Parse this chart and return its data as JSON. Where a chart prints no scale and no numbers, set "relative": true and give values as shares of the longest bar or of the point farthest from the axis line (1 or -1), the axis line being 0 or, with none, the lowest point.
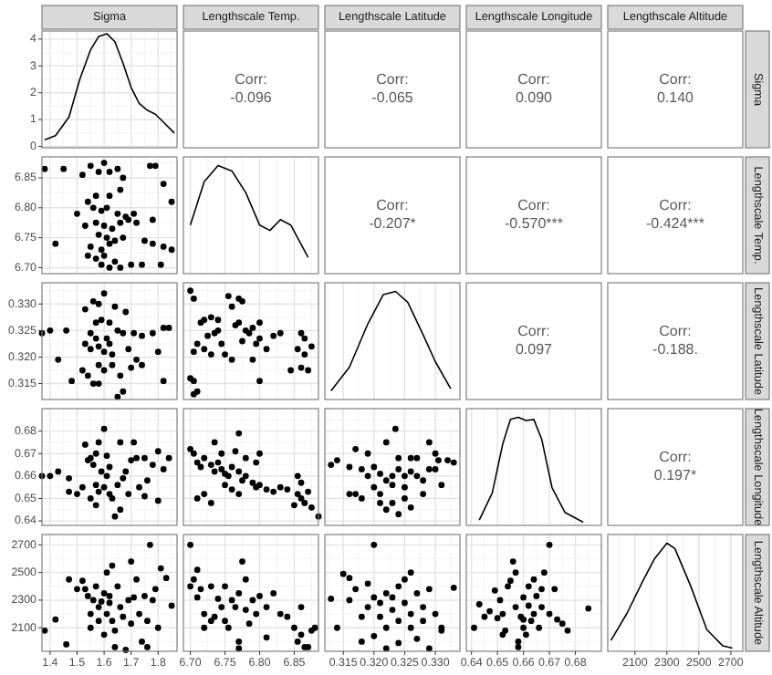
{
  "chart_data": [
    {
      "type": "line",
      "title": "Sigma",
      "color": "#000000",
      "grid": true,
      "tick_labels": "y",
      "xlim": [
        1.37,
        1.87
      ],
      "xticks": [
        1.4,
        1.5,
        1.6,
        1.7,
        1.8
      ],
      "ylim": [
        -0.05,
        4.3
      ],
      "yticks": [
        0,
        1,
        2,
        3,
        4
      ],
      "x": [
        1.38,
        1.42,
        1.47,
        1.51,
        1.55,
        1.58,
        1.61,
        1.64,
        1.67,
        1.7,
        1.73,
        1.76,
        1.79,
        1.82,
        1.86
      ],
      "values": [
        0.25,
        0.4,
        1.1,
        2.5,
        3.6,
        4.1,
        4.2,
        3.9,
        3.1,
        2.2,
        1.6,
        1.35,
        1.2,
        0.9,
        0.5
      ]
    },
    {
      "type": "other",
      "title": "Lengthscale Temp.",
      "annotations": [
        "Corr:",
        "-0.096"
      ]
    },
    {
      "type": "other",
      "title": "Lengthscale Latitude",
      "annotations": [
        "Corr:",
        "-0.065"
      ]
    },
    {
      "type": "other",
      "title": "Lengthscale Longitude",
      "annotations": [
        "Corr:",
        "0.090"
      ]
    },
    {
      "type": "other",
      "title": "Lengthscale Altitude",
      "y2label": "Sigma",
      "annotations": [
        "Corr:",
        "0.140"
      ]
    },
    {
      "type": "scatter",
      "color": "#000000",
      "marker": "circle",
      "grid": true,
      "tick_labels": "y",
      "xlim": [
        1.37,
        1.87
      ],
      "xticks": [
        1.4,
        1.5,
        1.6,
        1.7,
        1.8
      ],
      "ylim": [
        6.69,
        6.885
      ],
      "yticks": [
        {
          "value": 6.7,
          "label": "6.70"
        },
        {
          "value": 6.75,
          "label": "6.75"
        },
        {
          "value": 6.8,
          "label": "6.80"
        },
        {
          "value": 6.85,
          "label": "6.85"
        }
      ],
      "x": [
        1.38,
        1.45,
        1.52,
        1.55,
        1.58,
        1.6,
        1.62,
        1.65,
        1.67,
        1.77,
        1.79,
        1.82,
        1.54,
        1.57,
        1.62,
        1.66,
        1.56,
        1.59,
        1.61,
        1.65,
        1.68,
        1.71,
        1.78,
        1.85,
        1.5,
        1.53,
        1.57,
        1.6,
        1.63,
        1.66,
        1.69,
        1.72,
        1.58,
        1.61,
        1.64,
        1.67,
        1.42,
        1.55,
        1.59,
        1.62,
        1.75,
        1.78,
        1.82,
        1.85,
        1.54,
        1.57,
        1.6,
        1.64,
        1.7,
        1.62,
        1.66,
        1.74,
        1.81,
        1.59
      ],
      "values": [
        6.865,
        6.865,
        6.855,
        6.87,
        6.86,
        6.875,
        6.86,
        6.865,
        6.85,
        6.87,
        6.87,
        6.84,
        6.81,
        6.82,
        6.82,
        6.83,
        6.8,
        6.795,
        6.8,
        6.79,
        6.785,
        6.79,
        6.78,
        6.81,
        6.79,
        6.77,
        6.775,
        6.77,
        6.765,
        6.775,
        6.78,
        6.775,
        6.755,
        6.75,
        6.745,
        6.75,
        6.74,
        6.735,
        6.73,
        6.74,
        6.745,
        6.74,
        6.735,
        6.73,
        6.72,
        6.715,
        6.72,
        6.71,
        6.705,
        6.7,
        6.7,
        6.705,
        6.705,
        6.705
      ]
    },
    {
      "type": "line",
      "color": "#000000",
      "relative": true,
      "grid": true,
      "tick_labels": false,
      "xlim": [
        6.69,
        6.885
      ],
      "xticks": [
        6.7,
        6.75,
        6.8,
        6.85
      ],
      "x": [
        6.7,
        6.72,
        6.74,
        6.76,
        6.78,
        6.8,
        6.815,
        6.83,
        6.845,
        6.87
      ],
      "values": [
        0.45,
        0.85,
        1,
        0.95,
        0.75,
        0.45,
        0.4,
        0.5,
        0.45,
        0.15
      ]
    },
    {
      "type": "other",
      "annotations": [
        "Corr:",
        "-0.207*"
      ]
    },
    {
      "type": "other",
      "annotations": [
        "Corr:",
        "-0.570***"
      ]
    },
    {
      "type": "other",
      "y2label": "Lengthscale Temp.",
      "annotations": [
        "Corr:",
        "-0.424***"
      ]
    },
    {
      "type": "scatter",
      "color": "#000000",
      "marker": "circle",
      "grid": true,
      "tick_labels": "y",
      "xlim": [
        1.37,
        1.87
      ],
      "xticks": [
        1.4,
        1.5,
        1.6,
        1.7,
        1.8
      ],
      "ylim": [
        0.312,
        0.334
      ],
      "yticks": [
        0.315,
        {
          "value": 0.32,
          "label": "0.320"
        },
        0.325,
        {
          "value": 0.33,
          "label": "0.330"
        }
      ],
      "x": [
        1.37,
        1.4,
        1.46,
        1.43,
        1.48,
        1.52,
        1.54,
        1.55,
        1.53,
        1.56,
        1.58,
        1.6,
        1.62,
        1.59,
        1.61,
        1.57,
        1.55,
        1.58,
        1.6,
        1.63,
        1.65,
        1.67,
        1.58,
        1.6,
        1.56,
        1.58,
        1.63,
        1.66,
        1.65,
        1.67,
        1.7,
        1.72,
        1.74,
        1.71,
        1.74,
        1.78,
        1.82,
        1.84,
        1.8,
        1.82,
        1.68,
        1.64,
        1.53,
        1.57,
        1.62,
        1.69
      ],
      "values": [
        0.3245,
        0.325,
        0.325,
        0.3195,
        0.3155,
        0.3175,
        0.3165,
        0.3215,
        0.329,
        0.3305,
        0.33,
        0.332,
        0.3265,
        0.327,
        0.3235,
        0.3235,
        0.3245,
        0.322,
        0.321,
        0.3205,
        0.325,
        0.3245,
        0.3185,
        0.3175,
        0.315,
        0.315,
        0.3185,
        0.3165,
        0.3125,
        0.3135,
        0.318,
        0.3195,
        0.3185,
        0.3245,
        0.324,
        0.3245,
        0.3255,
        0.3255,
        0.321,
        0.3155,
        0.3285,
        0.3295,
        0.3225,
        0.3265,
        0.3225,
        0.3215
      ]
    },
    {
      "type": "scatter",
      "color": "#000000",
      "marker": "circle",
      "grid": true,
      "tick_labels": false,
      "xlim": [
        6.69,
        6.885
      ],
      "xticks": [
        6.7,
        6.75,
        6.8,
        6.85
      ],
      "ylim": [
        0.312,
        0.334
      ],
      "yticks": [
        0.315,
        0.32,
        0.325,
        0.33
      ],
      "x": [
        6.7,
        6.705,
        6.7,
        6.705,
        6.71,
        6.705,
        6.705,
        6.71,
        6.715,
        6.72,
        6.73,
        6.74,
        6.725,
        6.735,
        6.74,
        6.72,
        6.73,
        6.745,
        6.75,
        6.76,
        6.755,
        6.76,
        6.765,
        6.77,
        6.78,
        6.775,
        6.785,
        6.79,
        6.795,
        6.8,
        6.81,
        6.79,
        6.77,
        6.775,
        6.8,
        6.82,
        6.83,
        6.8,
        6.845,
        6.86,
        6.855,
        6.865,
        6.86,
        6.87,
        6.875,
        6.865
      ],
      "values": [
        0.3325,
        0.331,
        0.316,
        0.3155,
        0.3135,
        0.313,
        0.321,
        0.3225,
        0.3265,
        0.327,
        0.3275,
        0.327,
        0.324,
        0.3245,
        0.325,
        0.3215,
        0.3205,
        0.3225,
        0.3205,
        0.3195,
        0.3315,
        0.3295,
        0.326,
        0.3265,
        0.325,
        0.323,
        0.3245,
        0.3255,
        0.3225,
        0.3235,
        0.3215,
        0.3195,
        0.331,
        0.3305,
        0.3265,
        0.324,
        0.3245,
        0.3155,
        0.3175,
        0.3245,
        0.3215,
        0.3205,
        0.318,
        0.3175,
        0.322,
        0.3235
      ]
    },
    {
      "type": "line",
      "color": "#000000",
      "relative": true,
      "grid": true,
      "tick_labels": false,
      "xlim": [
        0.312,
        0.334
      ],
      "xticks": [
        0.315,
        0.32,
        0.325,
        0.33
      ],
      "x": [
        0.313,
        0.316,
        0.319,
        0.3215,
        0.3235,
        0.3255,
        0.328,
        0.33,
        0.3325
      ],
      "values": [
        0.08,
        0.3,
        0.7,
        0.97,
        1,
        0.9,
        0.6,
        0.35,
        0.1
      ]
    },
    {
      "type": "other",
      "annotations": [
        "Corr:",
        "0.097"
      ]
    },
    {
      "type": "other",
      "y2label": "Lengthscale Latitude",
      "annotations": [
        "Corr:",
        "-0.188."
      ]
    },
    {
      "type": "scatter",
      "color": "#000000",
      "marker": "circle",
      "grid": true,
      "tick_labels": "y",
      "xlim": [
        1.37,
        1.87
      ],
      "xticks": [
        1.4,
        1.5,
        1.6,
        1.7,
        1.8
      ],
      "ylim": [
        0.638,
        0.69
      ],
      "yticks": [
        0.64,
        0.65,
        0.66,
        0.67,
        0.68
      ],
      "x": [
        1.37,
        1.4,
        1.43,
        1.47,
        1.47,
        1.5,
        1.52,
        1.54,
        1.55,
        1.56,
        1.57,
        1.58,
        1.6,
        1.59,
        1.61,
        1.62,
        1.57,
        1.58,
        1.55,
        1.57,
        1.6,
        1.62,
        1.63,
        1.64,
        1.66,
        1.65,
        1.67,
        1.68,
        1.7,
        1.71,
        1.72,
        1.73,
        1.75,
        1.76,
        1.78,
        1.8,
        1.82,
        1.84,
        1.8,
        1.75,
        1.66,
        1.53,
        1.61,
        1.69
      ],
      "values": [
        0.66,
        0.66,
        0.662,
        0.659,
        0.653,
        0.652,
        0.655,
        0.667,
        0.668,
        0.665,
        0.67,
        0.675,
        0.681,
        0.662,
        0.66,
        0.664,
        0.656,
        0.653,
        0.65,
        0.647,
        0.655,
        0.652,
        0.65,
        0.642,
        0.645,
        0.656,
        0.659,
        0.662,
        0.667,
        0.675,
        0.668,
        0.655,
        0.651,
        0.658,
        0.665,
        0.671,
        0.663,
        0.668,
        0.649,
        0.668,
        0.675,
        0.674,
        0.669,
        0.652
      ]
    },
    {
      "type": "scatter",
      "color": "#000000",
      "marker": "circle",
      "grid": true,
      "tick_labels": false,
      "xlim": [
        6.69,
        6.885
      ],
      "xticks": [
        6.7,
        6.75,
        6.8,
        6.85
      ],
      "ylim": [
        0.638,
        0.69
      ],
      "yticks": [
        0.64,
        0.65,
        0.66,
        0.67,
        0.68
      ],
      "x": [
        6.7,
        6.705,
        6.71,
        6.715,
        6.72,
        6.73,
        6.735,
        6.74,
        6.745,
        6.75,
        6.755,
        6.76,
        6.77,
        6.775,
        6.78,
        6.79,
        6.795,
        6.8,
        6.81,
        6.82,
        6.83,
        6.84,
        6.71,
        6.72,
        6.73,
        6.76,
        6.77,
        6.77,
        6.735,
        6.745,
        6.765,
        6.78,
        6.795,
        6.75,
        6.855,
        6.86,
        6.855,
        6.86,
        6.865,
        6.87,
        6.875,
        6.85,
        6.885,
        6.8
      ],
      "values": [
        0.672,
        0.67,
        0.666,
        0.664,
        0.668,
        0.665,
        0.662,
        0.666,
        0.663,
        0.661,
        0.66,
        0.664,
        0.662,
        0.658,
        0.66,
        0.657,
        0.655,
        0.656,
        0.654,
        0.653,
        0.655,
        0.654,
        0.65,
        0.652,
        0.648,
        0.654,
        0.652,
        0.679,
        0.675,
        0.67,
        0.671,
        0.668,
        0.666,
        0.656,
        0.66,
        0.657,
        0.652,
        0.65,
        0.648,
        0.653,
        0.646,
        0.647,
        0.642,
        0.67
      ]
    },
    {
      "type": "scatter",
      "color": "#000000",
      "marker": "circle",
      "grid": true,
      "tick_labels": false,
      "xlim": [
        0.312,
        0.334
      ],
      "xticks": [
        0.315,
        0.32,
        0.325,
        0.33
      ],
      "ylim": [
        0.638,
        0.69
      ],
      "yticks": [
        0.64,
        0.65,
        0.66,
        0.67,
        0.68
      ],
      "x": [
        0.313,
        0.314,
        0.316,
        0.317,
        0.316,
        0.317,
        0.318,
        0.319,
        0.32,
        0.32,
        0.321,
        0.321,
        0.321,
        0.322,
        0.322,
        0.323,
        0.323,
        0.323,
        0.324,
        0.324,
        0.3235,
        0.324,
        0.325,
        0.325,
        0.325,
        0.326,
        0.326,
        0.327,
        0.327,
        0.328,
        0.328,
        0.329,
        0.329,
        0.33,
        0.3305,
        0.331,
        0.332,
        0.333,
        0.322,
        0.319,
        0.326,
        0.318,
        0.33
      ],
      "values": [
        0.665,
        0.667,
        0.664,
        0.672,
        0.652,
        0.652,
        0.663,
        0.66,
        0.655,
        0.664,
        0.661,
        0.652,
        0.648,
        0.645,
        0.658,
        0.66,
        0.656,
        0.648,
        0.643,
        0.668,
        0.681,
        0.663,
        0.66,
        0.655,
        0.65,
        0.662,
        0.668,
        0.668,
        0.66,
        0.658,
        0.652,
        0.663,
        0.675,
        0.67,
        0.667,
        0.656,
        0.667,
        0.666,
        0.675,
        0.67,
        0.646,
        0.65,
        0.663
      ]
    },
    {
      "type": "line",
      "color": "#000000",
      "relative": true,
      "grid": true,
      "tick_labels": false,
      "xlim": [
        0.638,
        0.69
      ],
      "xticks": [
        0.64,
        0.65,
        0.66,
        0.67,
        0.68
      ],
      "x": [
        0.643,
        0.648,
        0.652,
        0.655,
        0.658,
        0.661,
        0.664,
        0.667,
        0.671,
        0.676,
        0.683
      ],
      "values": [
        0.05,
        0.3,
        0.75,
        0.98,
        1,
        0.97,
        0.98,
        0.8,
        0.35,
        0.12,
        0.03
      ]
    },
    {
      "type": "other",
      "y2label": "Lengthscale Longitude",
      "annotations": [
        "Corr:",
        "0.197*"
      ]
    },
    {
      "type": "scatter",
      "color": "#000000",
      "marker": "circle",
      "grid": true,
      "xlim": [
        1.37,
        1.87
      ],
      "xticks": [
        1.4,
        1.5,
        1.6,
        1.7,
        1.8
      ],
      "ylim": [
        1930,
        2775
      ],
      "yticks": [
        2100,
        2300,
        2500,
        2700
      ],
      "x": [
        1.38,
        1.42,
        1.46,
        1.47,
        1.5,
        1.52,
        1.53,
        1.54,
        1.55,
        1.55,
        1.56,
        1.57,
        1.58,
        1.58,
        1.59,
        1.6,
        1.6,
        1.61,
        1.61,
        1.62,
        1.63,
        1.63,
        1.64,
        1.64,
        1.65,
        1.66,
        1.67,
        1.68,
        1.69,
        1.7,
        1.7,
        1.71,
        1.72,
        1.73,
        1.74,
        1.75,
        1.76,
        1.77,
        1.78,
        1.79,
        1.8,
        1.81,
        1.83,
        1.85,
        1.76,
        1.62
      ],
      "values": [
        2080,
        2160,
        1980,
        2450,
        2380,
        2440,
        2380,
        2330,
        2200,
        2100,
        2300,
        2400,
        2250,
        2150,
        2290,
        2350,
        2050,
        2200,
        2500,
        2280,
        2550,
        2150,
        2080,
        1960,
        2400,
        2250,
        2180,
        1940,
        2300,
        2580,
        2130,
        2320,
        2450,
        2200,
        2000,
        2330,
        2150,
        2700,
        2300,
        2380,
        2100,
        2530,
        2460,
        2260,
        1960,
        2330
      ]
    },
    {
      "type": "scatter",
      "color": "#000000",
      "marker": "circle",
      "grid": true,
      "tick_labels": "x",
      "xlim": [
        6.69,
        6.885
      ],
      "xticks": [
        {
          "value": 6.7,
          "label": "6.70"
        },
        {
          "value": 6.75,
          "label": "6.75"
        },
        {
          "value": 6.8,
          "label": "6.80"
        },
        {
          "value": 6.85,
          "label": "6.85"
        }
      ],
      "ylim": [
        1930,
        2775
      ],
      "yticks": [
        2100,
        2300,
        2500,
        2700
      ],
      "x": [
        6.7,
        6.7,
        6.705,
        6.71,
        6.71,
        6.715,
        6.72,
        6.72,
        6.73,
        6.735,
        6.74,
        6.745,
        6.75,
        6.75,
        6.755,
        6.76,
        6.765,
        6.77,
        6.77,
        6.775,
        6.78,
        6.78,
        6.785,
        6.79,
        6.795,
        6.8,
        6.81,
        6.81,
        6.82,
        6.83,
        6.84,
        6.85,
        6.855,
        6.86,
        6.86,
        6.865,
        6.87,
        6.875,
        6.88,
        6.77,
        6.73
      ],
      "values": [
        2700,
        2400,
        2450,
        2520,
        2320,
        2380,
        2200,
        2100,
        2400,
        2180,
        2310,
        2250,
        2400,
        2150,
        2100,
        2300,
        2250,
        2350,
        2000,
        2580,
        2450,
        2230,
        2130,
        2300,
        2200,
        2330,
        2250,
        2030,
        2350,
        2200,
        2180,
        2100,
        2000,
        2050,
        2250,
        1960,
        1960,
        2080,
        2100,
        1950,
        2150
      ]
    },
    {
      "type": "scatter",
      "color": "#000000",
      "marker": "circle",
      "grid": true,
      "tick_labels": "x",
      "xlim": [
        0.312,
        0.334
      ],
      "xticks": [
        0.315,
        {
          "value": 0.32,
          "label": "0.320"
        },
        0.325,
        {
          "value": 0.33,
          "label": "0.330"
        }
      ],
      "ylim": [
        1930,
        2775
      ],
      "yticks": [
        2100,
        2300,
        2500,
        2700
      ],
      "x": [
        0.313,
        0.314,
        0.315,
        0.316,
        0.316,
        0.317,
        0.318,
        0.318,
        0.319,
        0.319,
        0.32,
        0.32,
        0.32,
        0.321,
        0.321,
        0.322,
        0.322,
        0.322,
        0.323,
        0.323,
        0.324,
        0.324,
        0.324,
        0.325,
        0.325,
        0.326,
        0.326,
        0.327,
        0.327,
        0.328,
        0.328,
        0.329,
        0.33,
        0.331,
        0.331,
        0.333,
        0.329,
        0.326
      ],
      "values": [
        2310,
        2100,
        2490,
        2460,
        2300,
        2380,
        2180,
        2000,
        2420,
        2250,
        2700,
        2320,
        2040,
        2280,
        2180,
        2350,
        2100,
        1950,
        2320,
        2230,
        2400,
        2150,
        1990,
        2450,
        2280,
        2200,
        2100,
        2350,
        2020,
        2250,
        2150,
        2380,
        2200,
        2100,
        2080,
        2390,
        1950,
        2500
      ]
    },
    {
      "type": "scatter",
      "color": "#000000",
      "marker": "circle",
      "grid": true,
      "tick_labels": "x",
      "xlim": [
        0.638,
        0.69
      ],
      "xticks": [
        0.64,
        0.65,
        0.66,
        0.67,
        0.68
      ],
      "ylim": [
        1930,
        2775
      ],
      "yticks": [
        2100,
        2300,
        2500,
        2700
      ],
      "x": [
        0.641,
        0.643,
        0.645,
        0.647,
        0.649,
        0.65,
        0.651,
        0.652,
        0.653,
        0.654,
        0.655,
        0.656,
        0.657,
        0.657,
        0.658,
        0.658,
        0.659,
        0.66,
        0.66,
        0.661,
        0.662,
        0.662,
        0.663,
        0.664,
        0.664,
        0.665,
        0.666,
        0.667,
        0.667,
        0.668,
        0.67,
        0.67,
        0.672,
        0.673,
        0.675,
        0.677,
        0.685,
        0.652,
        0.66
      ],
      "values": [
        2100,
        2270,
        2180,
        2220,
        2370,
        2170,
        2300,
        2200,
        2080,
        2400,
        2440,
        2580,
        2500,
        2250,
        2000,
        1960,
        2180,
        2320,
        2100,
        2050,
        2260,
        2400,
        2150,
        2450,
        2200,
        2330,
        2100,
        2380,
        2250,
        2500,
        2700,
        2200,
        2380,
        2160,
        2130,
        2080,
        2240,
        2050,
        2160
      ]
    },
    {
      "type": "line",
      "color": "#000000",
      "relative": true,
      "grid": true,
      "tick_labels": "x",
      "y2label": "Lengthscale Altitude",
      "xlim": [
        1930,
        2775
      ],
      "xticks": [
        2100,
        2300,
        2500,
        2700
      ],
      "x": [
        1950,
        2050,
        2150,
        2220,
        2300,
        2350,
        2450,
        2550,
        2650,
        2710
      ],
      "values": [
        0.1,
        0.35,
        0.65,
        0.85,
        1,
        0.95,
        0.6,
        0.2,
        0.05,
        0.03
      ]
    }
  ]
}
